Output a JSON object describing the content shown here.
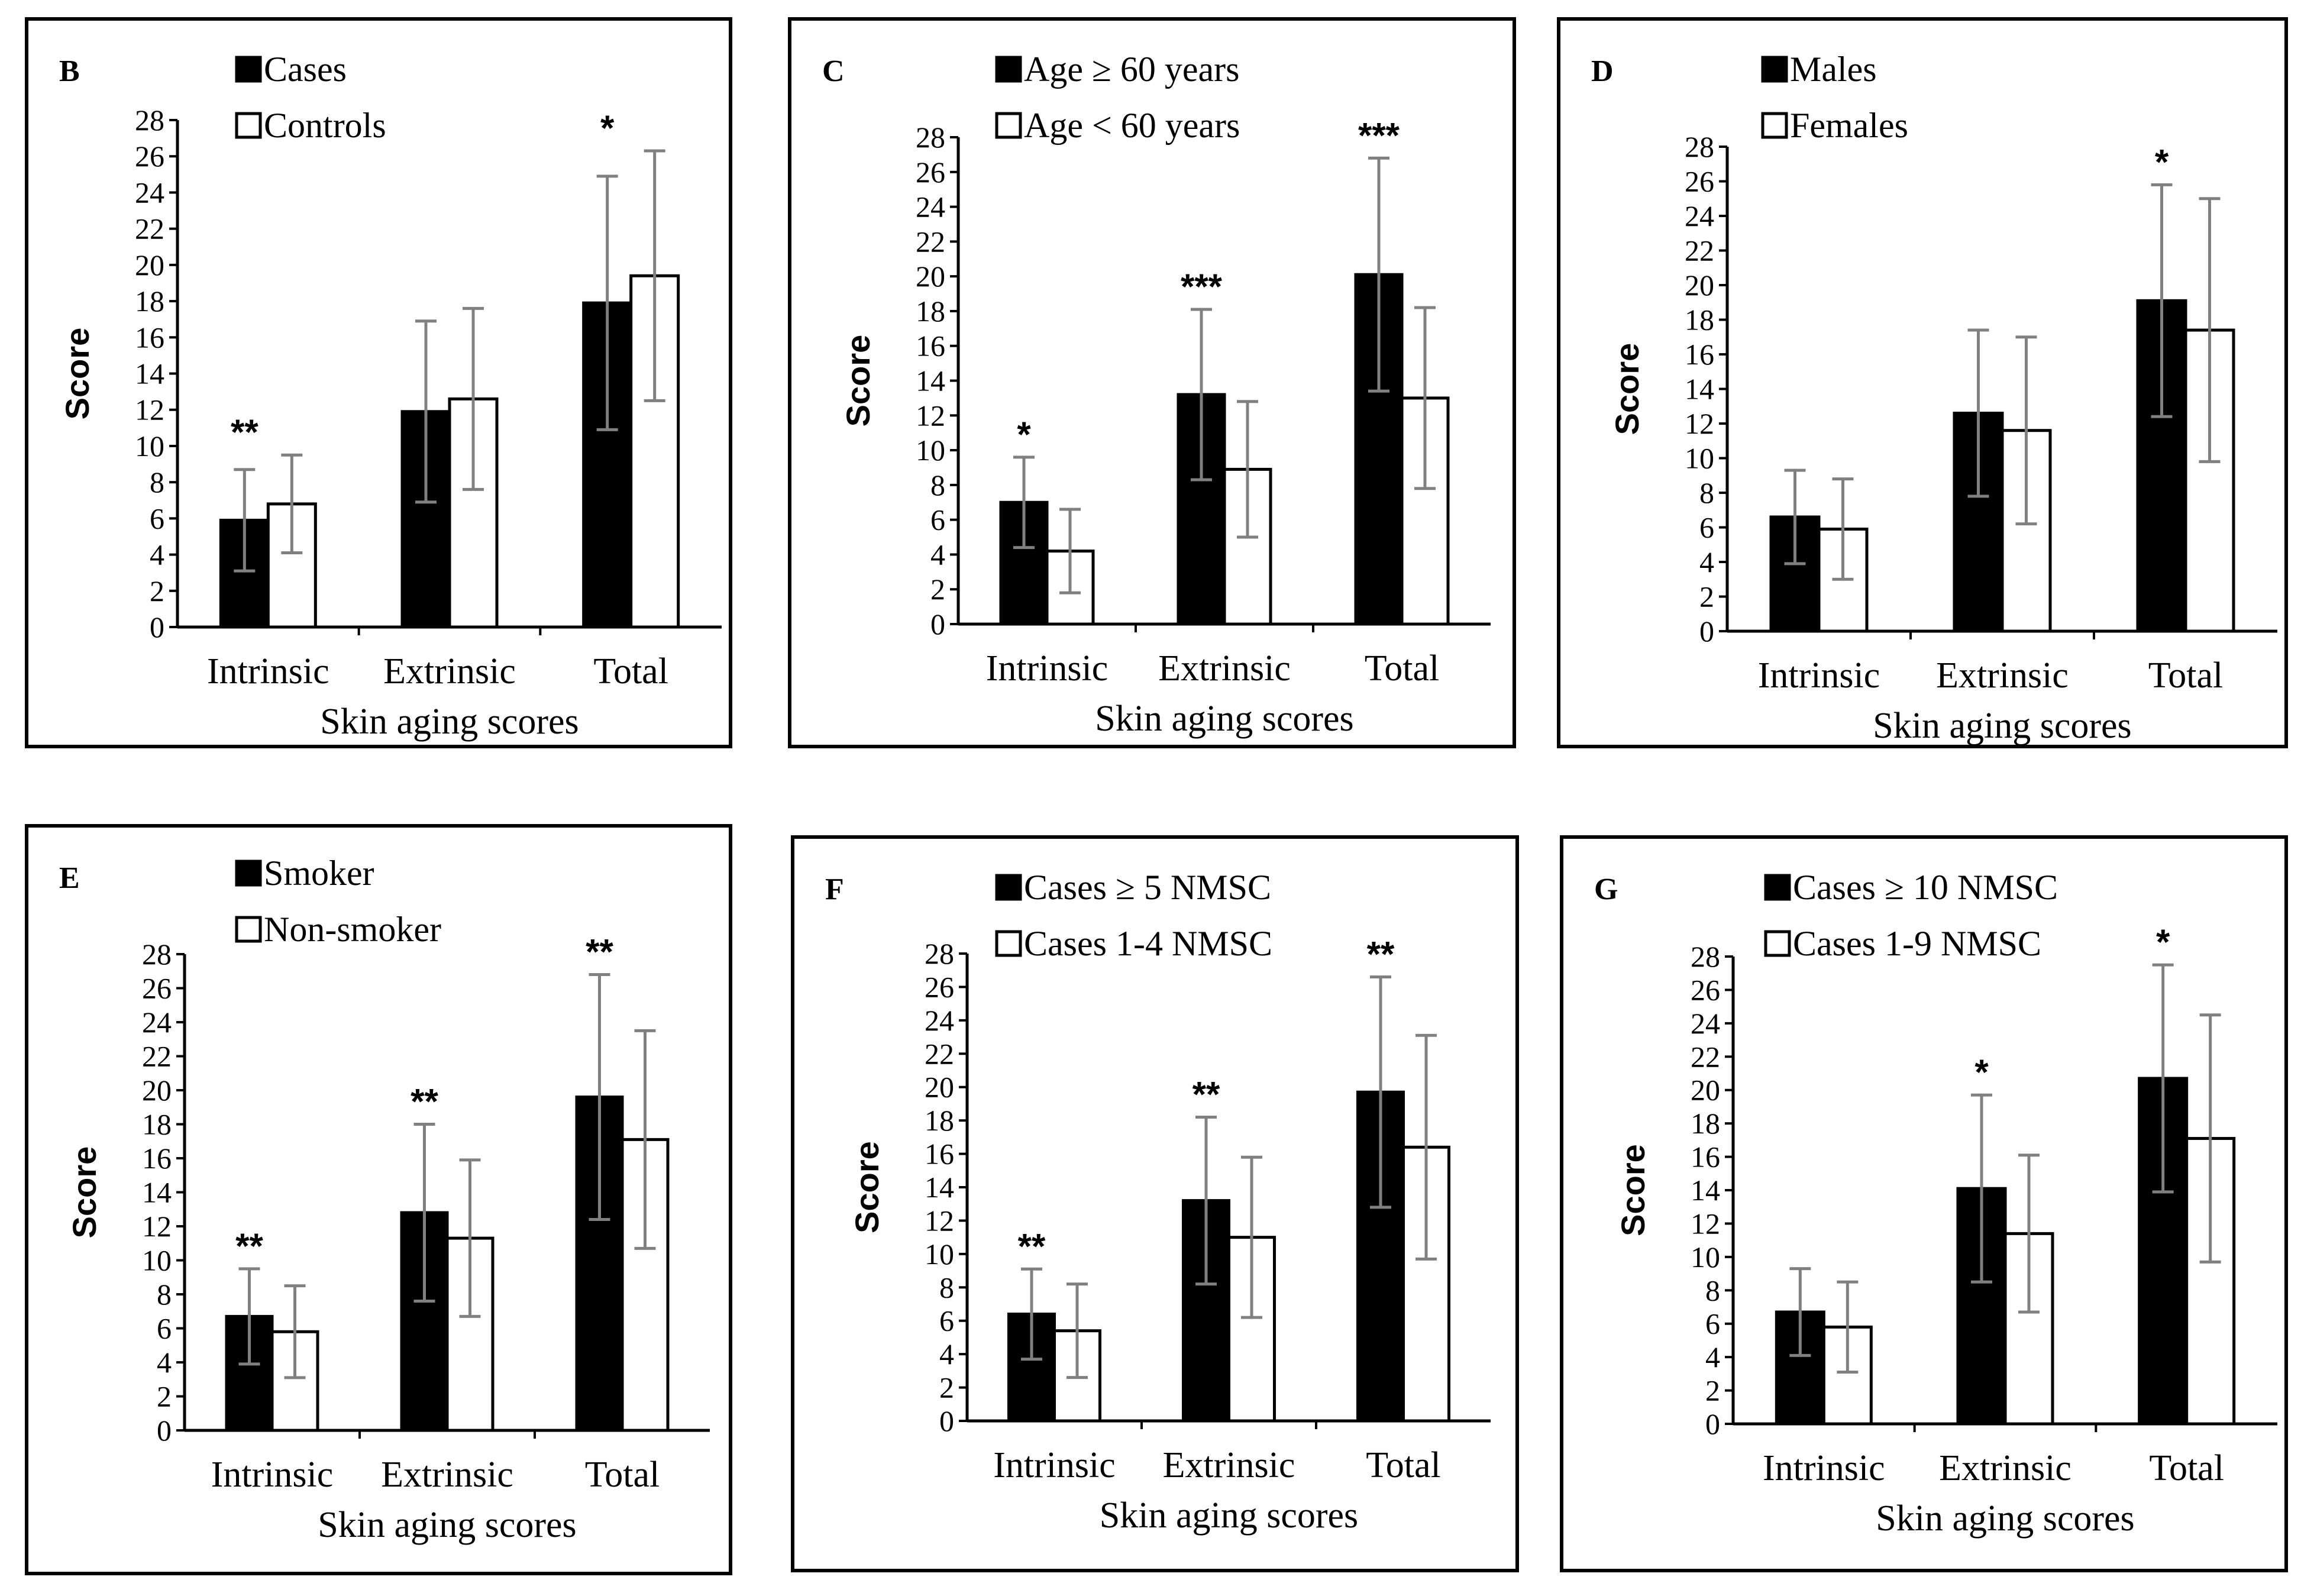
{
  "chart_data": [
    {
      "type": "bar",
      "panel": "B",
      "categories": [
        "Intrinsic",
        "Extrinsic",
        "Total"
      ],
      "series": [
        {
          "name": "Cases",
          "values": [
            5.9,
            11.9,
            17.9
          ],
          "error": [
            2.8,
            5.0,
            7.0
          ],
          "fill": "#000000"
        },
        {
          "name": "Controls",
          "values": [
            6.8,
            12.6,
            19.4
          ],
          "error": [
            2.7,
            5.0,
            6.9
          ],
          "fill": "#ffffff"
        }
      ],
      "significance": [
        "**",
        "",
        "*"
      ],
      "xlabel": "Skin aging scores",
      "ylabel": "Score",
      "ylim": [
        0,
        28
      ],
      "yticks": [
        "0",
        "2",
        "4",
        "6",
        "8",
        "10",
        "12",
        "14",
        "16",
        "18",
        "20",
        "22",
        "24",
        "26",
        "28"
      ]
    },
    {
      "type": "bar",
      "panel": "C",
      "categories": [
        "Intrinsic",
        "Extrinsic",
        "Total"
      ],
      "series": [
        {
          "name": "Age ≥ 60 years",
          "values": [
            7.0,
            13.2,
            20.1
          ],
          "error": [
            2.6,
            4.9,
            6.7
          ],
          "fill": "#000000"
        },
        {
          "name": "Age < 60 years",
          "values": [
            4.2,
            8.9,
            13.0
          ],
          "error": [
            2.4,
            3.9,
            5.2
          ],
          "fill": "#ffffff"
        }
      ],
      "significance": [
        "*",
        "***",
        "***"
      ],
      "xlabel": "Skin aging scores",
      "ylabel": "Score",
      "ylim": [
        0,
        28
      ],
      "yticks": [
        "0",
        "2",
        "4",
        "6",
        "8",
        "10",
        "12",
        "14",
        "16",
        "18",
        "20",
        "22",
        "24",
        "26",
        "28"
      ]
    },
    {
      "type": "bar",
      "panel": "D",
      "categories": [
        "Intrinsic",
        "Extrinsic",
        "Total"
      ],
      "series": [
        {
          "name": "Males",
          "values": [
            6.6,
            12.6,
            19.1
          ],
          "error": [
            2.7,
            4.8,
            6.7
          ],
          "fill": "#000000"
        },
        {
          "name": "Females",
          "values": [
            5.9,
            11.6,
            17.4
          ],
          "error": [
            2.9,
            5.4,
            7.6
          ],
          "fill": "#ffffff"
        }
      ],
      "significance": [
        "",
        "",
        "*"
      ],
      "xlabel": "Skin aging scores",
      "ylabel": "Score",
      "ylim": [
        0,
        28
      ],
      "yticks": [
        "0",
        "2",
        "4",
        "6",
        "8",
        "10",
        "12",
        "14",
        "16",
        "18",
        "20",
        "22",
        "24",
        "26",
        "28"
      ]
    },
    {
      "type": "bar",
      "panel": "E",
      "categories": [
        "Intrinsic",
        "Extrinsic",
        "Total"
      ],
      "series": [
        {
          "name": "Smoker",
          "values": [
            6.7,
            12.8,
            19.6
          ],
          "error": [
            2.8,
            5.2,
            7.2
          ],
          "fill": "#000000"
        },
        {
          "name": "Non-smoker",
          "values": [
            5.8,
            11.3,
            17.1
          ],
          "error": [
            2.7,
            4.6,
            6.4
          ],
          "fill": "#ffffff"
        }
      ],
      "significance": [
        "**",
        "**",
        "**"
      ],
      "xlabel": "Skin aging scores",
      "ylabel": "Score",
      "ylim": [
        0,
        28
      ],
      "yticks": [
        "0",
        "2",
        "4",
        "6",
        "8",
        "10",
        "12",
        "14",
        "16",
        "18",
        "20",
        "22",
        "24",
        "26",
        "28"
      ]
    },
    {
      "type": "bar",
      "panel": "F",
      "categories": [
        "Intrinsic",
        "Extrinsic",
        "Total"
      ],
      "series": [
        {
          "name": "Cases ≥ 5 NMSC",
          "values": [
            6.4,
            13.2,
            19.7
          ],
          "error": [
            2.7,
            5.0,
            6.9
          ],
          "fill": "#000000"
        },
        {
          "name": "Cases 1-4 NMSC",
          "values": [
            5.4,
            11.0,
            16.4
          ],
          "error": [
            2.8,
            4.8,
            6.7
          ],
          "fill": "#ffffff"
        }
      ],
      "significance": [
        "**",
        "**",
        "**"
      ],
      "xlabel": "Skin aging scores",
      "ylabel": "Score",
      "ylim": [
        0,
        28
      ],
      "yticks": [
        "0",
        "2",
        "4",
        "6",
        "8",
        "10",
        "12",
        "14",
        "16",
        "18",
        "20",
        "22",
        "24",
        "26",
        "28"
      ]
    },
    {
      "type": "bar",
      "panel": "G",
      "categories": [
        "Intrinsic",
        "Extrinsic",
        "Total"
      ],
      "series": [
        {
          "name": "Cases ≥ 10 NMSC",
          "values": [
            6.7,
            14.1,
            20.7
          ],
          "error": [
            2.6,
            5.6,
            6.8
          ],
          "fill": "#000000"
        },
        {
          "name": "Cases 1-9 NMSC",
          "values": [
            5.8,
            11.4,
            17.1
          ],
          "error": [
            2.7,
            4.7,
            7.4
          ],
          "fill": "#ffffff"
        }
      ],
      "significance": [
        "",
        "*",
        "*"
      ],
      "xlabel": "Skin aging scores",
      "ylabel": "Score",
      "ylim": [
        0,
        28
      ],
      "yticks": [
        "0",
        "2",
        "4",
        "6",
        "8",
        "10",
        "12",
        "14",
        "16",
        "18",
        "20",
        "22",
        "24",
        "26",
        "28"
      ]
    }
  ],
  "style": {
    "bar_stroke": "#000000",
    "error_bar_color": "#808080",
    "axis_color": "#000000",
    "frame_color": "#000000"
  }
}
